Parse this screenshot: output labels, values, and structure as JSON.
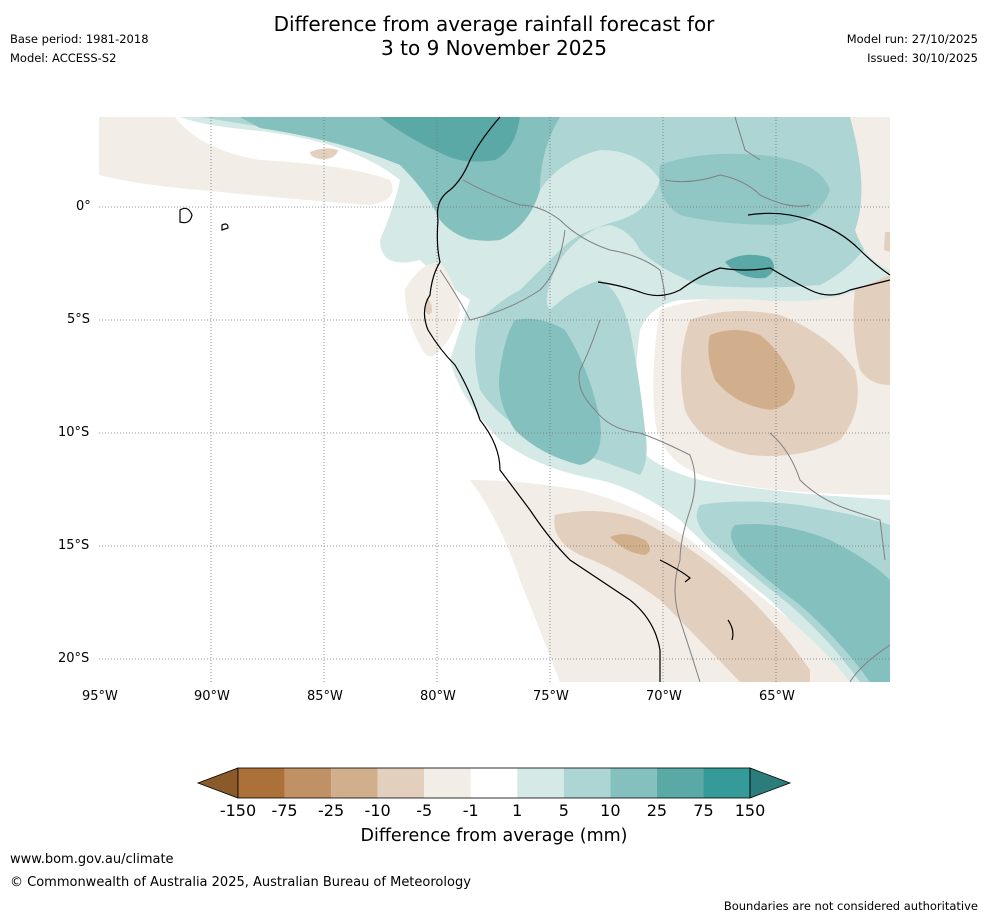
{
  "header": {
    "base_period": "Base period: 1981-2018",
    "model": "Model: ACCESS-S2",
    "title_line1": "Difference from average rainfall forecast for",
    "title_line2": "3 to 9 November 2025",
    "model_run": "Model run: 27/10/2025",
    "issued": "Issued: 30/10/2025"
  },
  "map": {
    "lat_labels": [
      "0°",
      "5°S",
      "10°S",
      "15°S",
      "20°S"
    ],
    "lon_labels": [
      "95°W",
      "90°W",
      "85°W",
      "80°W",
      "75°W",
      "70°W",
      "65°W"
    ]
  },
  "colorbar": {
    "label": "Difference from average (mm)",
    "ticks": [
      "-150",
      "-75",
      "-25",
      "-10",
      "-5",
      "-1",
      "1",
      "5",
      "10",
      "25",
      "75",
      "150"
    ],
    "colors": [
      "#8b5a2b",
      "#ac7139",
      "#c19166",
      "#d2af8c",
      "#e3cfbd",
      "#f2ede6",
      "#ffffff",
      "#d5e9e7",
      "#acd5d3",
      "#84c0be",
      "#5aa9a7",
      "#349b98",
      "#2a7d7b"
    ]
  },
  "footer": {
    "url": "www.bom.gov.au/climate",
    "copyright": "© Commonwealth of Australia 2025, Australian Bureau of Meteorology",
    "disclaimer": "Boundaries are not considered authoritative"
  }
}
